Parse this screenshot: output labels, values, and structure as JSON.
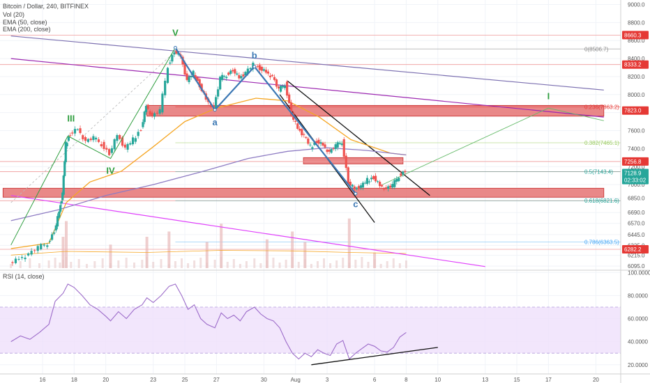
{
  "legend": {
    "symbol": "Bitcoin / Dollar, 240, BITFINEX",
    "vol": "Vol (20)",
    "ema50": "EMA (50, close)",
    "ema200": "EMA (200, close)"
  },
  "rsi_legend": "RSI (14, close)",
  "colors": {
    "bull": "#26a69a",
    "bear": "#ef5350",
    "ema50": "#f5a623",
    "ema200": "#8e7cc3",
    "zone": "#e57373",
    "wave_green": "#2e9e3e",
    "wave_blue": "#3c78b4",
    "rsi": "#9c6bc9"
  },
  "chart_data": [
    {
      "type": "candlestick",
      "title": "Bitcoin / Dollar, 240, BITFINEX",
      "xlabel": "",
      "ylabel": "",
      "x_ticks": [
        "16",
        "18",
        "20",
        "23",
        "25",
        "27",
        "30",
        "Aug",
        "3",
        "6",
        "8",
        "10",
        "13",
        "15",
        "17",
        "20"
      ],
      "x_tick_days": [
        16,
        18,
        20,
        23,
        25,
        27,
        30,
        32,
        34,
        37,
        39,
        41,
        44,
        46,
        48,
        51
      ],
      "y_ticks": [
        6095,
        6215,
        6325,
        6445,
        6570,
        6690,
        6850,
        7000,
        7200,
        7400,
        7600,
        7800,
        8000,
        8200,
        8400,
        8600,
        8800,
        9000
      ],
      "ylim": [
        6050,
        9050
      ],
      "price_path": [
        [
          14.0,
          6120
        ],
        [
          14.6,
          6180
        ],
        [
          15.2,
          6230
        ],
        [
          15.8,
          6300
        ],
        [
          16.4,
          6350
        ],
        [
          16.8,
          6480
        ],
        [
          17.1,
          6700
        ],
        [
          17.3,
          6900
        ],
        [
          17.5,
          7450
        ],
        [
          17.8,
          7560
        ],
        [
          18.3,
          7620
        ],
        [
          18.8,
          7480
        ],
        [
          19.3,
          7520
        ],
        [
          19.8,
          7450
        ],
        [
          20.3,
          7340
        ],
        [
          20.8,
          7550
        ],
        [
          21.3,
          7400
        ],
        [
          21.8,
          7500
        ],
        [
          22.3,
          7620
        ],
        [
          22.6,
          7880
        ],
        [
          23.0,
          7760
        ],
        [
          23.5,
          7820
        ],
        [
          24.0,
          8320
        ],
        [
          24.4,
          8480
        ],
        [
          24.8,
          8420
        ],
        [
          25.2,
          8150
        ],
        [
          25.6,
          8240
        ],
        [
          26.0,
          8100
        ],
        [
          26.4,
          7950
        ],
        [
          26.9,
          7850
        ],
        [
          27.3,
          8180
        ],
        [
          27.7,
          8220
        ],
        [
          28.1,
          8270
        ],
        [
          28.5,
          8180
        ],
        [
          28.9,
          8240
        ],
        [
          29.4,
          8330
        ],
        [
          29.8,
          8290
        ],
        [
          30.2,
          8250
        ],
        [
          30.6,
          8200
        ],
        [
          31.0,
          8050
        ],
        [
          31.4,
          8120
        ],
        [
          31.8,
          7780
        ],
        [
          32.2,
          7620
        ],
        [
          32.6,
          7540
        ],
        [
          33.0,
          7420
        ],
        [
          33.4,
          7480
        ],
        [
          33.8,
          7440
        ],
        [
          34.2,
          7360
        ],
        [
          34.6,
          7430
        ],
        [
          35.0,
          7480
        ],
        [
          35.4,
          7020
        ],
        [
          35.8,
          6950
        ],
        [
          36.2,
          6980
        ],
        [
          36.6,
          7050
        ],
        [
          37.0,
          7080
        ],
        [
          37.4,
          6990
        ],
        [
          37.8,
          6960
        ],
        [
          38.2,
          6990
        ],
        [
          38.6,
          7100
        ],
        [
          39.0,
          7150
        ]
      ],
      "ema50_points": [
        [
          14.0,
          6290
        ],
        [
          16.4,
          6350
        ],
        [
          17.5,
          6800
        ],
        [
          19.0,
          7030
        ],
        [
          21.0,
          7150
        ],
        [
          23.0,
          7420
        ],
        [
          25.0,
          7700
        ],
        [
          27.0,
          7850
        ],
        [
          29.5,
          7960
        ],
        [
          31.5,
          7930
        ],
        [
          33.5,
          7750
        ],
        [
          35.5,
          7500
        ],
        [
          38.0,
          7350
        ],
        [
          39.0,
          7330
        ]
      ],
      "ema200_points": [
        [
          14.0,
          6600
        ],
        [
          17.0,
          6720
        ],
        [
          20.0,
          6880
        ],
        [
          23.0,
          7000
        ],
        [
          26.0,
          7140
        ],
        [
          29.0,
          7290
        ],
        [
          31.5,
          7370
        ],
        [
          34.0,
          7410
        ],
        [
          36.5,
          7380
        ],
        [
          39.0,
          7330
        ]
      ],
      "volume": [
        {
          "x": 17.3,
          "v": 0.6
        },
        {
          "x": 17.5,
          "v": 0.9
        },
        {
          "x": 20.3,
          "v": 0.45
        },
        {
          "x": 22.6,
          "v": 0.6
        },
        {
          "x": 24.0,
          "v": 0.7
        },
        {
          "x": 26.4,
          "v": 0.5
        },
        {
          "x": 27.3,
          "v": 0.85
        },
        {
          "x": 30.2,
          "v": 0.55
        },
        {
          "x": 31.8,
          "v": 0.7
        },
        {
          "x": 32.6,
          "v": 0.5
        },
        {
          "x": 35.4,
          "v": 0.95
        },
        {
          "x": 37.0,
          "v": 0.3
        }
      ],
      "volume_baseline_points": [
        [
          14.0,
          0.25
        ],
        [
          17.5,
          0.32
        ],
        [
          22.6,
          0.3
        ],
        [
          27.3,
          0.34
        ],
        [
          31.8,
          0.33
        ],
        [
          35.4,
          0.3
        ],
        [
          39.0,
          0.28
        ]
      ],
      "fib_levels": [
        {
          "label": "0(8506.7)",
          "value": 8506.7,
          "color": "#888888"
        },
        {
          "label": "0.236(7863.2)",
          "value": 7863.2,
          "color": "#e53935"
        },
        {
          "label": "0.382(7465.1)",
          "value": 7465.1,
          "color": "#9ccc65"
        },
        {
          "label": "0.5(7143.4)",
          "value": 7143.4,
          "color": "#26a69a"
        },
        {
          "label": "0.618(6821.6)",
          "value": 6821.6,
          "color": "#26a69a"
        },
        {
          "label": "0.786(6363.5)",
          "value": 6363.5,
          "color": "#42a5f5"
        }
      ],
      "price_tags": [
        {
          "label": "8660.3",
          "value": 8660.3,
          "color": "#e53935"
        },
        {
          "label": "8333.2",
          "value": 8333.2,
          "color": "#e53935"
        },
        {
          "label": "7823.0",
          "value": 7823.0,
          "color": "#e53935"
        },
        {
          "label": "7256.8",
          "value": 7256.8,
          "color": "#e53935"
        },
        {
          "label": "7128.9",
          "value": 7128.9,
          "color": "#26a69a"
        },
        {
          "label": "02:33:02",
          "value": 7050,
          "color": "#26a69a"
        },
        {
          "label": "6282.2",
          "value": 6282.2,
          "color": "#e53935"
        }
      ],
      "horizontal_lines": [
        8660.3,
        8333.2,
        7256.8,
        7143.4,
        6821.6,
        6282.2
      ],
      "zones": [
        {
          "x0": 22.6,
          "x1": 51.5,
          "y0": 7760,
          "y1": 7880
        },
        {
          "x0": 13.5,
          "x1": 51.5,
          "y0": 6860,
          "y1": 6960
        },
        {
          "x0": 32.5,
          "x1": 38.8,
          "y0": 7230,
          "y1": 7300
        }
      ],
      "trend_lines": [
        {
          "name": "upper-purple-trend",
          "color": "#7b6fb0",
          "width": 1.2,
          "points": [
            [
              14.0,
              8650
            ],
            [
              51.5,
              8050
            ]
          ]
        },
        {
          "name": "mid-purple-trend",
          "color": "#9c27b0",
          "width": 1.2,
          "points": [
            [
              14.0,
              8400
            ],
            [
              51.5,
              7750
            ]
          ]
        },
        {
          "name": "magenta-trend",
          "color": "#e040fb",
          "width": 1.2,
          "points": [
            [
              14.0,
              6880
            ],
            [
              44.0,
              6090
            ]
          ]
        },
        {
          "name": "channel-upper",
          "color": "#111111",
          "width": 1.3,
          "points": [
            [
              31.5,
              8150
            ],
            [
              40.5,
              6880
            ]
          ]
        },
        {
          "name": "channel-lower",
          "color": "#111111",
          "width": 1.3,
          "points": [
            [
              31.0,
              8000
            ],
            [
              37.0,
              6580
            ]
          ]
        },
        {
          "name": "projection-up",
          "color": "#66bb6a",
          "width": 0.9,
          "points": [
            [
              37.5,
              7000
            ],
            [
              48.0,
              7850
            ]
          ]
        },
        {
          "name": "projection-flat",
          "color": "#66bb6a",
          "width": 0.9,
          "points": [
            [
              48.0,
              7850
            ],
            [
              51.5,
              7710
            ]
          ]
        },
        {
          "name": "dashed-trend",
          "color": "#bbbbbb",
          "width": 0.9,
          "dash": "3,3",
          "points": [
            [
              14.0,
              6800
            ],
            [
              24.4,
              8480
            ]
          ]
        }
      ],
      "wave_lines": [
        {
          "color": "#2e9e3e",
          "points": [
            [
              14.0,
              6330
            ],
            [
              17.6,
              7540
            ],
            [
              20.3,
              7290
            ],
            [
              24.4,
              8520
            ]
          ]
        },
        {
          "color": "#3c78b4",
          "points": [
            [
              24.4,
              8520
            ],
            [
              26.9,
              7830
            ],
            [
              29.4,
              8310
            ],
            [
              35.8,
              6900
            ]
          ]
        }
      ],
      "wave_labels": [
        {
          "label": "V",
          "x": 24.4,
          "y": 8650,
          "color": "#2e9e3e"
        },
        {
          "label": "III",
          "x": 17.8,
          "y": 7700,
          "color": "#2e9e3e"
        },
        {
          "label": "IV",
          "x": 20.3,
          "y": 7120,
          "color": "#2e9e3e"
        },
        {
          "label": "a",
          "x": 26.9,
          "y": 7660,
          "color": "#3c78b4"
        },
        {
          "label": "b",
          "x": 29.4,
          "y": 8400,
          "color": "#3c78b4"
        },
        {
          "label": "c",
          "x": 35.8,
          "y": 6750,
          "color": "#3c78b4"
        },
        {
          "label": "I",
          "x": 48.0,
          "y": 7950,
          "color": "#2e9e3e"
        }
      ]
    },
    {
      "type": "line",
      "title": "RSI (14, close)",
      "xlabel": "",
      "ylabel": "",
      "y_ticks": [
        20,
        40,
        60,
        80,
        100
      ],
      "y_tick_labels": [
        "20.0000",
        "40.0000",
        "60.0000",
        "80.0000",
        "100.0000"
      ],
      "ylim": [
        12,
        102
      ],
      "band": [
        30,
        70
      ],
      "points": [
        [
          14.0,
          40
        ],
        [
          14.6,
          45
        ],
        [
          15.2,
          42
        ],
        [
          15.8,
          48
        ],
        [
          16.4,
          55
        ],
        [
          16.8,
          75
        ],
        [
          17.3,
          82
        ],
        [
          17.6,
          90
        ],
        [
          18.0,
          87
        ],
        [
          18.5,
          80
        ],
        [
          19.0,
          72
        ],
        [
          19.5,
          68
        ],
        [
          20.0,
          62
        ],
        [
          20.3,
          58
        ],
        [
          20.8,
          66
        ],
        [
          21.3,
          60
        ],
        [
          21.8,
          68
        ],
        [
          22.3,
          72
        ],
        [
          22.6,
          78
        ],
        [
          23.0,
          74
        ],
        [
          23.5,
          80
        ],
        [
          24.0,
          88
        ],
        [
          24.4,
          90
        ],
        [
          24.8,
          80
        ],
        [
          25.2,
          68
        ],
        [
          25.6,
          72
        ],
        [
          26.0,
          60
        ],
        [
          26.4,
          55
        ],
        [
          26.9,
          52
        ],
        [
          27.3,
          65
        ],
        [
          27.7,
          60
        ],
        [
          28.1,
          63
        ],
        [
          28.5,
          58
        ],
        [
          28.9,
          66
        ],
        [
          29.4,
          70
        ],
        [
          29.8,
          64
        ],
        [
          30.2,
          60
        ],
        [
          30.6,
          58
        ],
        [
          31.0,
          52
        ],
        [
          31.4,
          40
        ],
        [
          31.8,
          30
        ],
        [
          32.2,
          25
        ],
        [
          32.6,
          30
        ],
        [
          33.0,
          27
        ],
        [
          33.4,
          33
        ],
        [
          33.8,
          30
        ],
        [
          34.2,
          28
        ],
        [
          34.6,
          38
        ],
        [
          35.0,
          41
        ],
        [
          35.4,
          25
        ],
        [
          35.8,
          30
        ],
        [
          36.2,
          34
        ],
        [
          36.6,
          38
        ],
        [
          37.0,
          36
        ],
        [
          37.4,
          32
        ],
        [
          37.8,
          31
        ],
        [
          38.2,
          35
        ],
        [
          38.6,
          44
        ],
        [
          39.0,
          48
        ]
      ],
      "divergence_line": [
        [
          33.0,
          20
        ],
        [
          41.0,
          35
        ]
      ]
    }
  ]
}
